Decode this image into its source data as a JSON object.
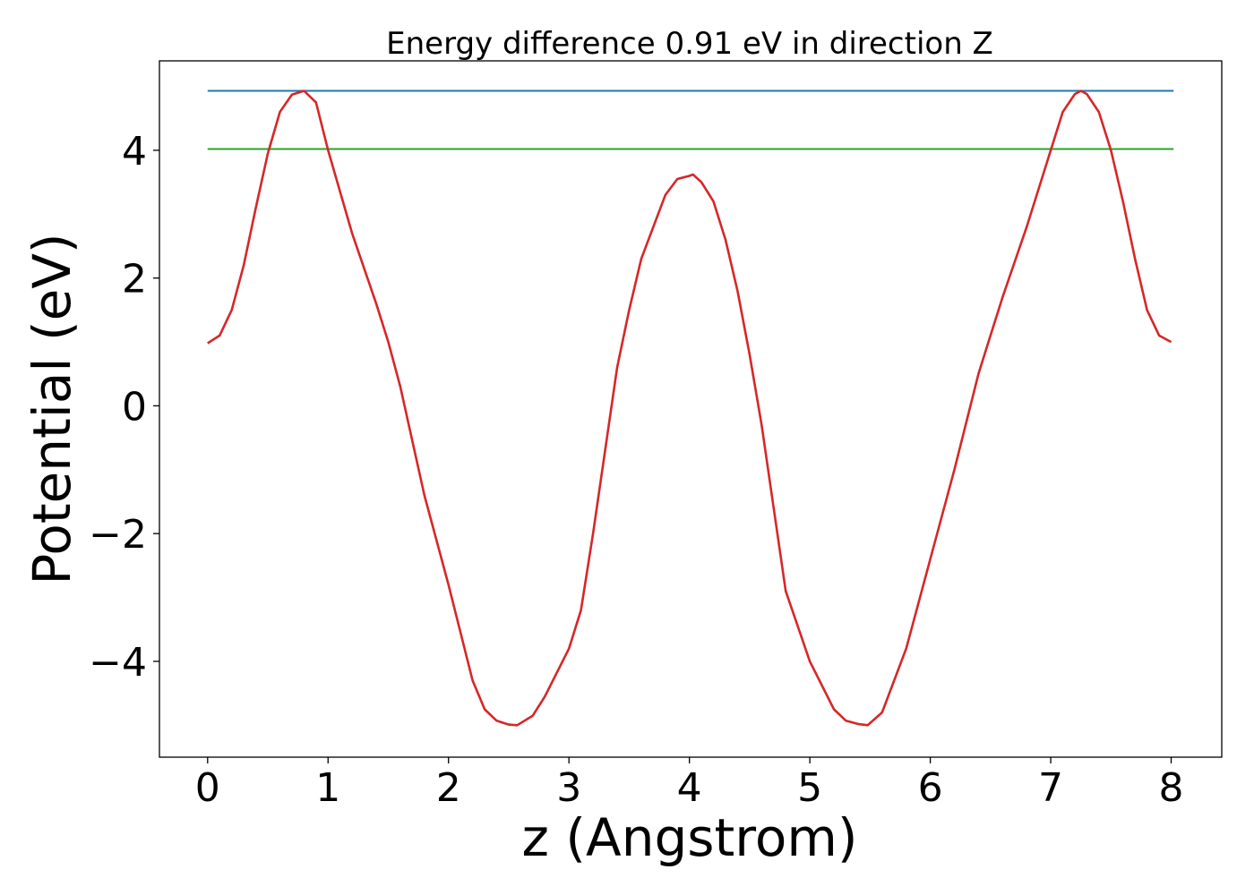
{
  "chart_data": {
    "type": "line",
    "title": "Energy difference 0.91 eV in direction Z",
    "xlabel": "z (Angstrom)",
    "ylabel": "Potential (eV)",
    "xlim": [
      -0.4,
      8.42
    ],
    "ylim": [
      -5.5,
      5.4
    ],
    "grid": false,
    "xticks": [
      0,
      1,
      2,
      3,
      4,
      5,
      6,
      7,
      8
    ],
    "xtick_labels": [
      "0",
      "1",
      "2",
      "3",
      "4",
      "5",
      "6",
      "7",
      "8"
    ],
    "yticks": [
      -4,
      -2,
      0,
      2,
      4
    ],
    "ytick_labels": [
      "−4",
      "−2",
      "0",
      "2",
      "4"
    ],
    "series": [
      {
        "color": "#1f77b4",
        "x": [
          0,
          8.02
        ],
        "y": [
          4.93,
          4.93
        ]
      },
      {
        "color": "#2ca02c",
        "x": [
          0,
          8.02
        ],
        "y": [
          4.02,
          4.02
        ]
      },
      {
        "color": "#d62728",
        "x": [
          0,
          0.1,
          0.2,
          0.3,
          0.4,
          0.5,
          0.6,
          0.7,
          0.8,
          0.9,
          1.0,
          1.2,
          1.4,
          1.5,
          1.6,
          1.8,
          2.0,
          2.2,
          2.3,
          2.4,
          2.5,
          2.57,
          2.7,
          2.8,
          3.0,
          3.1,
          3.2,
          3.4,
          3.5,
          3.6,
          3.8,
          3.9,
          4.0,
          4.03,
          4.1,
          4.2,
          4.3,
          4.4,
          4.5,
          4.6,
          4.8,
          5.0,
          5.2,
          5.3,
          5.4,
          5.48,
          5.6,
          5.8,
          6.0,
          6.2,
          6.4,
          6.5,
          6.6,
          6.8,
          7.0,
          7.1,
          7.2,
          7.25,
          7.3,
          7.4,
          7.5,
          7.6,
          7.7,
          7.8,
          7.9,
          8.0
        ],
        "y": [
          0.98,
          1.1,
          1.5,
          2.2,
          3.1,
          3.95,
          4.6,
          4.87,
          4.93,
          4.75,
          4.0,
          2.7,
          1.6,
          1.0,
          0.3,
          -1.4,
          -2.8,
          -4.3,
          -4.75,
          -4.93,
          -4.99,
          -5.0,
          -4.85,
          -4.55,
          -3.8,
          -3.2,
          -2.0,
          0.6,
          1.5,
          2.3,
          3.3,
          3.55,
          3.6,
          3.62,
          3.5,
          3.2,
          2.6,
          1.8,
          0.8,
          -0.3,
          -2.9,
          -4.0,
          -4.75,
          -4.93,
          -4.98,
          -5.0,
          -4.8,
          -3.8,
          -2.4,
          -1.0,
          0.5,
          1.1,
          1.7,
          2.8,
          4.0,
          4.6,
          4.88,
          4.93,
          4.88,
          4.6,
          4.0,
          3.2,
          2.3,
          1.5,
          1.1,
          1.0
        ]
      }
    ]
  }
}
